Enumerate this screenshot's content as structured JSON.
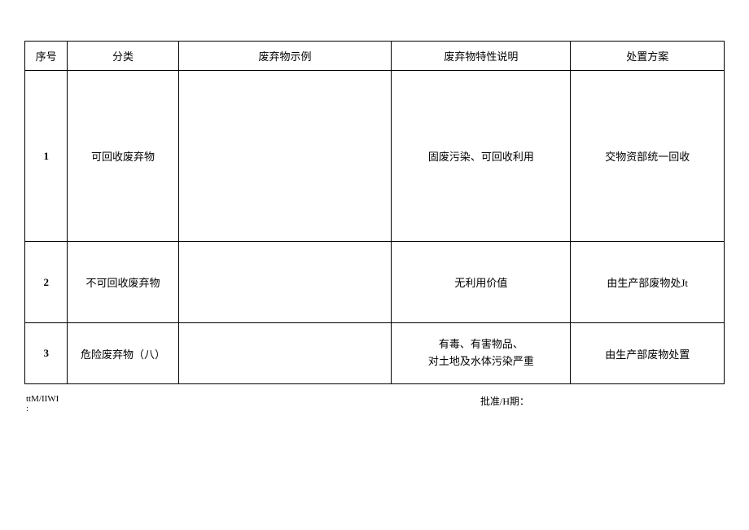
{
  "table": {
    "columns": [
      {
        "label": "序号",
        "class": "col-num"
      },
      {
        "label": "分类",
        "class": "col-cat"
      },
      {
        "label": "废弃物示例",
        "class": "col-example"
      },
      {
        "label": "废弃物特性说明",
        "class": "col-desc"
      },
      {
        "label": "处置方案",
        "class": "col-plan"
      }
    ],
    "rows": [
      {
        "class": "row1",
        "num": "1",
        "category": "可回收废弃物",
        "example": "",
        "description": "固废污染、可回收利用",
        "plan": "交物资部统一回收"
      },
      {
        "class": "row2",
        "num": "2",
        "category": "不可回收废弃物",
        "example": "",
        "description": "无利用价值",
        "plan": "由生产部废物处Jt"
      },
      {
        "class": "row3",
        "num": "3",
        "category": "危险废弃物（八）",
        "example": "",
        "description_line1": "有毒、有害物品、",
        "description_line2": "对土地及水体污染严重",
        "plan": "由生产部废物处置"
      }
    ]
  },
  "footer": {
    "left_line1": "ttM/IIWI",
    "left_line2": ":",
    "right": "批准/H期："
  }
}
